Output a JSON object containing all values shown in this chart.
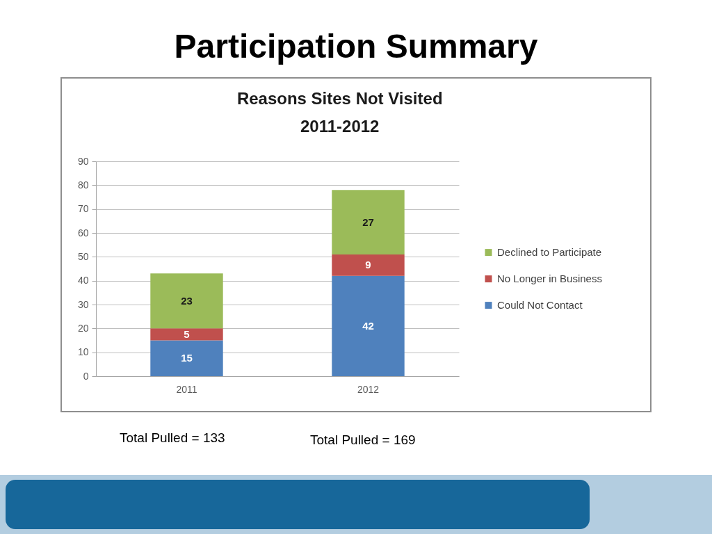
{
  "chart_data": {
    "type": "bar",
    "title": "Participation Summary",
    "subtitle": "Reasons Sites Not Visited 2011-2012",
    "categories": [
      "2011",
      "2012"
    ],
    "series": [
      {
        "name": "Could Not Contact",
        "color": "#4f81bd",
        "values": [
          15,
          42
        ]
      },
      {
        "name": "No Longer in Business",
        "color": "#c0504d",
        "values": [
          5,
          9
        ]
      },
      {
        "name": "Declined to Participate",
        "color": "#9bbb59",
        "values": [
          23,
          27
        ]
      }
    ],
    "stacked": true,
    "ylim": [
      0,
      90
    ],
    "yticks": [
      0,
      10,
      20,
      30,
      40,
      50,
      60,
      70,
      80,
      90
    ],
    "grid": "y",
    "legend": "right",
    "data_labels": true,
    "annotations": [
      "Total Pulled = 133",
      "Total Pulled = 169"
    ]
  }
}
